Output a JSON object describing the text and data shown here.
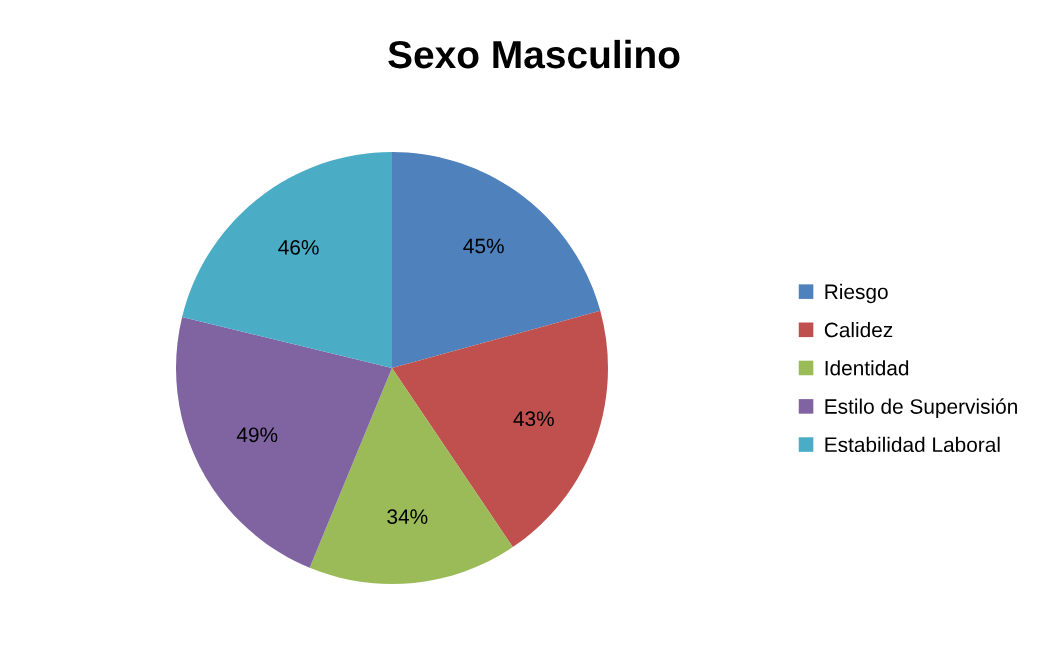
{
  "chart_data": {
    "type": "pie",
    "title": "Sexo Masculino",
    "categories": [
      "Riesgo",
      "Calidez",
      "Identidad",
      "Estilo de Supervisión",
      "Estabilidad Laboral"
    ],
    "values": [
      45,
      43,
      34,
      49,
      46
    ],
    "value_labels": [
      "45%",
      "43%",
      "34%",
      "49%",
      "46%"
    ],
    "colors": [
      "#4f81bd",
      "#c0504d",
      "#9bbb59",
      "#8064a2",
      "#4bacc6"
    ],
    "legend": "right"
  }
}
